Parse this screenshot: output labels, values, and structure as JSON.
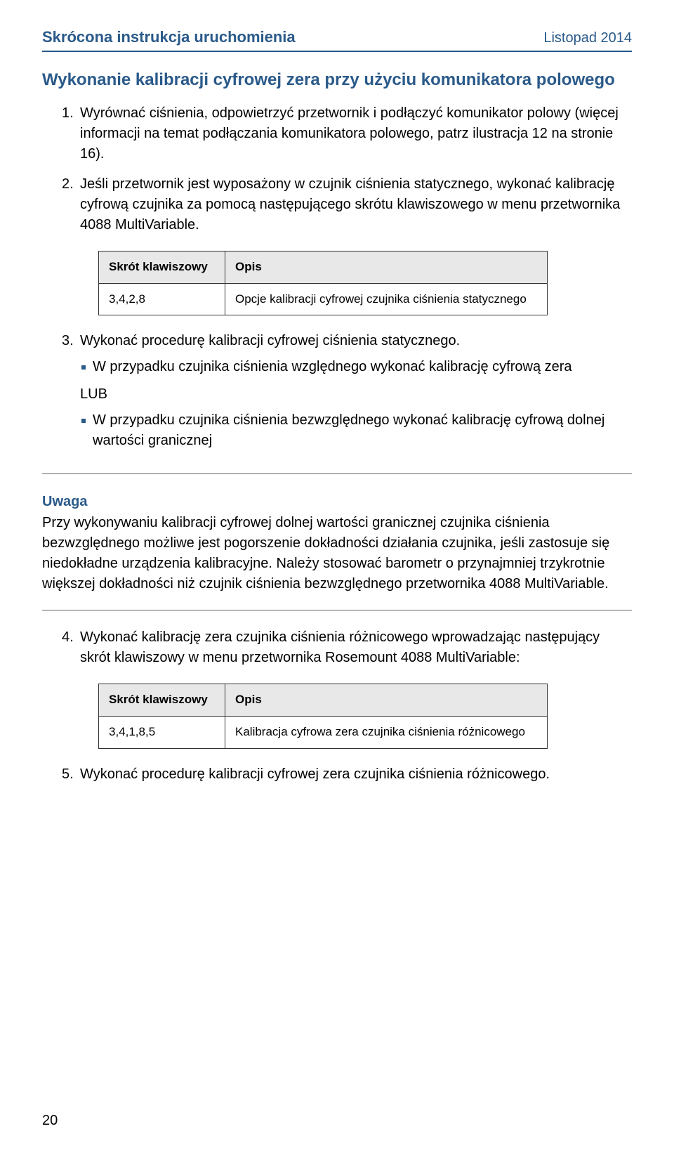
{
  "header": {
    "left": "Skrócona instrukcja uruchomienia",
    "right": "Listopad 2014"
  },
  "section_title": "Wykonanie kalibracji cyfrowej zera przy użyciu komunikatora polowego",
  "list1": [
    {
      "num": "1.",
      "text": "Wyrównać ciśnienia, odpowietrzyć przetwornik i podłączyć komunikator polowy (więcej informacji na temat podłączania komunikatora polowego, patrz ilustracja 12 na stronie 16)."
    },
    {
      "num": "2.",
      "text": "Jeśli przetwornik jest wyposażony w czujnik ciśnienia statycznego, wykonać kalibrację cyfrową czujnika za pomocą następującego skrótu klawiszowego w menu przetwornika 4088 MultiVariable."
    }
  ],
  "table1": {
    "col_header1": "Skrót klawiszowy",
    "col_header2": "Opis",
    "cell1": "3,4,2,8",
    "cell2": "Opcje kalibracji cyfrowej czujnika ciśnienia statycznego"
  },
  "list2": {
    "num": "3.",
    "text": "Wykonać procedurę kalibracji cyfrowej ciśnienia statycznego.",
    "bullets": [
      "W przypadku czujnika ciśnienia względnego wykonać kalibrację cyfrową zera",
      "W przypadku czujnika ciśnienia bezwzględnego wykonać kalibrację cyfrową dolnej wartości granicznej"
    ],
    "lub": "LUB"
  },
  "note": {
    "heading": "Uwaga",
    "body": "Przy wykonywaniu kalibracji cyfrowej dolnej wartości granicznej czujnika ciśnienia bezwzględnego możliwe jest pogorszenie dokładności działania czujnika, jeśli zastosuje się niedokładne urządzenia kalibracyjne. Należy stosować barometr o przynajmniej trzykrotnie większej dokładności niż czujnik ciśnienia bezwzględnego przetwornika 4088 MultiVariable."
  },
  "list3": {
    "num": "4.",
    "text": "Wykonać kalibrację zera czujnika ciśnienia różnicowego wprowadzając następujący skrót klawiszowy w menu przetwornika Rosemount 4088 MultiVariable:"
  },
  "table2": {
    "col_header1": "Skrót klawiszowy",
    "col_header2": "Opis",
    "cell1": "3,4,1,8,5",
    "cell2": "Kalibracja cyfrowa zera czujnika ciśnienia różnicowego"
  },
  "list4": {
    "num": "5.",
    "text": "Wykonać procedurę kalibracji cyfrowej zera czujnika ciśnienia różnicowego."
  },
  "page_number": "20",
  "colors": {
    "accent": "#2a5a8a",
    "text": "#000000",
    "table_header_bg": "#e8e8e8",
    "border": "#333333",
    "rule": "#666666",
    "bg": "#ffffff"
  }
}
